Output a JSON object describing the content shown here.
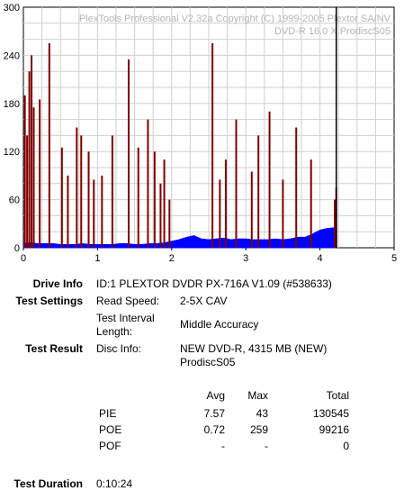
{
  "chart_data": {
    "type": "bar",
    "watermark": [
      "PlexTools Professional V2.32a Copyright (C) 1999-2005 Plextor SA/NV",
      "DVD-R   16.0 X   ProdiscS05"
    ],
    "xlim": [
      0,
      5
    ],
    "ylim": [
      0,
      300
    ],
    "x_ticks": [
      "0",
      "1",
      "2",
      "3",
      "4",
      "5"
    ],
    "y_ticks": [
      "300",
      "240",
      "180",
      "120",
      "60",
      "0"
    ],
    "grid": true,
    "end_marker_x": 4.22,
    "series": [
      {
        "name": "PIE",
        "color": "#0000ff",
        "x": [
          0.0,
          0.1,
          0.2,
          0.3,
          0.4,
          0.5,
          0.6,
          0.7,
          0.8,
          0.9,
          1.0,
          1.1,
          1.2,
          1.3,
          1.4,
          1.5,
          1.6,
          1.7,
          1.8,
          1.9,
          2.0,
          2.1,
          2.2,
          2.3,
          2.4,
          2.5,
          2.6,
          2.7,
          2.8,
          2.9,
          3.0,
          3.1,
          3.2,
          3.3,
          3.4,
          3.5,
          3.6,
          3.7,
          3.8,
          3.9,
          4.0,
          4.1,
          4.2
        ],
        "values": [
          5,
          6,
          5,
          5,
          5,
          4,
          4,
          4,
          5,
          4,
          4,
          4,
          4,
          5,
          5,
          4,
          4,
          5,
          5,
          6,
          8,
          10,
          13,
          15,
          11,
          10,
          11,
          12,
          10,
          11,
          11,
          10,
          10,
          10,
          11,
          10,
          11,
          13,
          13,
          17,
          22,
          24,
          25
        ]
      },
      {
        "name": "POE",
        "color": "#800000",
        "x": [
          0.02,
          0.05,
          0.08,
          0.11,
          0.14,
          0.22,
          0.35,
          0.52,
          0.6,
          0.72,
          0.78,
          0.88,
          0.95,
          1.06,
          1.2,
          1.42,
          1.55,
          1.68,
          1.77,
          1.85,
          1.9,
          1.97,
          2.55,
          2.65,
          2.73,
          2.87,
          3.08,
          3.17,
          3.32,
          3.5,
          3.68,
          3.88,
          4.2,
          4.22
        ],
        "values": [
          190,
          140,
          220,
          240,
          175,
          185,
          255,
          125,
          90,
          150,
          140,
          120,
          85,
          90,
          140,
          235,
          125,
          160,
          120,
          80,
          110,
          60,
          255,
          85,
          110,
          160,
          95,
          140,
          170,
          85,
          150,
          110,
          60,
          75
        ]
      }
    ]
  },
  "info": {
    "drive_label": "Drive Info",
    "drive_value": "ID:1 PLEXTOR DVDR PX-716A V1.09 (#538633)",
    "settings_label": "Test Settings",
    "read_speed_label": "Read Speed:",
    "read_speed_value": "2-5X CAV",
    "interval_label_1": "Test Interval",
    "interval_label_2": "Length:",
    "interval_value": "Middle Accuracy",
    "result_label": "Test Result",
    "disc_label": "Disc Info:",
    "disc_value_1": "NEW DVD-R, 4315 MB (NEW)",
    "disc_value_2": "ProdiscS05",
    "duration_label": "Test Duration",
    "duration_value": "0:10:24"
  },
  "stats": {
    "headers": [
      "Avg",
      "Max",
      "Total"
    ],
    "rows": [
      {
        "name": "PIE",
        "avg": "7.57",
        "max": "43",
        "total": "130545"
      },
      {
        "name": "POE",
        "avg": "0.72",
        "max": "259",
        "total": "99216"
      },
      {
        "name": "POF",
        "avg": "-",
        "max": "-",
        "total": "0"
      }
    ]
  }
}
